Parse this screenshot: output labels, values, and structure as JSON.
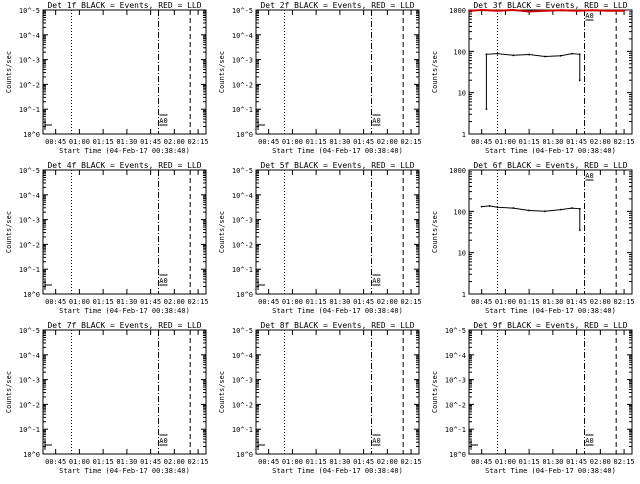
{
  "window": {
    "title": "Det 1f-9f BLACK = Events, RED = LLD"
  },
  "colors": {
    "events": "#000000",
    "lld": "#cc0000",
    "axis": "#000000",
    "background": "#ffffff"
  },
  "chart_data": [
    {
      "type": "line",
      "title": "Det 1f BLACK = Events, RED = LLD",
      "xlabel": "Start Time (04-Feb-17 00:38:40)",
      "ylabel": "Counts/sec",
      "x_ticks": [
        "00:45",
        "01:00",
        "01:15",
        "01:30",
        "01:45",
        "02:00",
        "02:15"
      ],
      "y_ticks": [
        "10^0",
        "10^-1",
        "10^-2",
        "10^-3",
        "10^-4",
        "10^-5"
      ],
      "yscale": "log",
      "has_data": false,
      "annotation": "A0",
      "markers": {
        "dotted": [
          "00:55"
        ],
        "dash_dot": [
          "01:50"
        ],
        "dashed": [
          "02:10"
        ]
      }
    },
    {
      "type": "line",
      "title": "Det 2f BLACK = Events, RED = LLD",
      "xlabel": "Start Time (04-Feb-17 00:38:40)",
      "ylabel": "Counts/sec",
      "x_ticks": [
        "00:45",
        "01:00",
        "01:15",
        "01:30",
        "01:45",
        "02:00",
        "02:15"
      ],
      "y_ticks": [
        "10^0",
        "10^-1",
        "10^-2",
        "10^-3",
        "10^-4",
        "10^-5"
      ],
      "yscale": "log",
      "has_data": false,
      "annotation": "A0",
      "markers": {
        "dotted": [
          "00:55"
        ],
        "dash_dot": [
          "01:50"
        ],
        "dashed": [
          "02:10"
        ]
      }
    },
    {
      "type": "line",
      "title": "Det 3f BLACK = Events, RED = LLD",
      "xlabel": "Start Time (04-Feb-17 00:38:40)",
      "ylabel": "Counts/sec",
      "x_ticks": [
        "00:45",
        "01:00",
        "01:15",
        "01:30",
        "01:45",
        "02:00",
        "02:15"
      ],
      "y_ticks": [
        "1",
        "10",
        "100",
        "1000"
      ],
      "yscale": "log",
      "has_data": true,
      "annotation": "A0",
      "markers": {
        "dotted": [
          "00:55"
        ],
        "dash_dot": [
          "01:50"
        ],
        "dashed": [
          "02:10"
        ]
      },
      "series": [
        {
          "name": "Events",
          "color": "#000000",
          "x": [
            "00:48",
            "00:48",
            "00:55",
            "01:05",
            "01:15",
            "01:25",
            "01:35",
            "01:42",
            "01:47",
            "01:47"
          ],
          "y": [
            4,
            85,
            88,
            80,
            84,
            75,
            78,
            88,
            85,
            20
          ]
        },
        {
          "name": "LLD",
          "color": "#cc0000",
          "x": [
            "00:37",
            "00:45",
            "00:55",
            "01:05",
            "01:15",
            "01:25",
            "01:35",
            "01:45",
            "01:55",
            "02:05",
            "02:15"
          ],
          "y": [
            950,
            1000,
            960,
            1000,
            920,
            960,
            990,
            960,
            990,
            960,
            960
          ]
        }
      ]
    },
    {
      "type": "line",
      "title": "Det 4f BLACK = Events, RED = LLD",
      "xlabel": "Start Time (04-Feb-17 00:38:40)",
      "ylabel": "Counts/sec",
      "x_ticks": [
        "00:45",
        "01:00",
        "01:15",
        "01:30",
        "01:45",
        "02:00",
        "02:15"
      ],
      "y_ticks": [
        "10^0",
        "10^-1",
        "10^-2",
        "10^-3",
        "10^-4",
        "10^-5"
      ],
      "yscale": "log",
      "has_data": false,
      "annotation": "A0",
      "markers": {
        "dotted": [
          "00:55"
        ],
        "dash_dot": [
          "01:50"
        ],
        "dashed": [
          "02:10"
        ]
      }
    },
    {
      "type": "line",
      "title": "Det 5f BLACK = Events, RED = LLD",
      "xlabel": "Start Time (04-Feb-17 00:38:40)",
      "ylabel": "Counts/sec",
      "x_ticks": [
        "00:45",
        "01:00",
        "01:15",
        "01:30",
        "01:45",
        "02:00",
        "02:15"
      ],
      "y_ticks": [
        "10^0",
        "10^-1",
        "10^-2",
        "10^-3",
        "10^-4",
        "10^-5"
      ],
      "yscale": "log",
      "has_data": false,
      "annotation": "A0",
      "markers": {
        "dotted": [
          "00:55"
        ],
        "dash_dot": [
          "01:50"
        ],
        "dashed": [
          "02:10"
        ]
      }
    },
    {
      "type": "line",
      "title": "Det 6f BLACK = Events, RED = LLD",
      "xlabel": "Start Time (04-Feb-17 00:38:40)",
      "ylabel": "Counts/sec",
      "x_ticks": [
        "00:45",
        "01:00",
        "01:15",
        "01:30",
        "01:45",
        "02:00",
        "02:15"
      ],
      "y_ticks": [
        "1",
        "10",
        "100",
        "1000"
      ],
      "yscale": "log",
      "has_data": true,
      "annotation": "A0",
      "markers": {
        "dotted": [
          "00:55"
        ],
        "dash_dot": [
          "01:50"
        ],
        "dashed": [
          "02:10"
        ]
      },
      "series": [
        {
          "name": "Events",
          "color": "#000000",
          "x": [
            "00:45",
            "00:50",
            "00:55",
            "01:05",
            "01:15",
            "01:25",
            "01:35",
            "01:42",
            "01:47",
            "01:47"
          ],
          "y": [
            130,
            135,
            125,
            120,
            105,
            100,
            110,
            120,
            115,
            35
          ]
        }
      ]
    },
    {
      "type": "line",
      "title": "Det 7f BLACK = Events, RED = LLD",
      "xlabel": "Start Time (04-Feb-17 00:38:40)",
      "ylabel": "Counts/sec",
      "x_ticks": [
        "00:45",
        "01:00",
        "01:15",
        "01:30",
        "01:45",
        "02:00",
        "02:15"
      ],
      "y_ticks": [
        "10^0",
        "10^-1",
        "10^-2",
        "10^-3",
        "10^-4",
        "10^-5"
      ],
      "yscale": "log",
      "has_data": false,
      "annotation": "A0",
      "markers": {
        "dotted": [
          "00:55"
        ],
        "dash_dot": [
          "01:50"
        ],
        "dashed": [
          "02:10"
        ]
      }
    },
    {
      "type": "line",
      "title": "Det 8f BLACK = Events, RED = LLD",
      "xlabel": "Start Time (04-Feb-17 00:38:40)",
      "ylabel": "Counts/sec",
      "x_ticks": [
        "00:45",
        "01:00",
        "01:15",
        "01:30",
        "01:45",
        "02:00",
        "02:15"
      ],
      "y_ticks": [
        "10^0",
        "10^-1",
        "10^-2",
        "10^-3",
        "10^-4",
        "10^-5"
      ],
      "yscale": "log",
      "has_data": false,
      "annotation": "A0",
      "markers": {
        "dotted": [
          "00:55"
        ],
        "dash_dot": [
          "01:50"
        ],
        "dashed": [
          "02:10"
        ]
      }
    },
    {
      "type": "line",
      "title": "Det 9f BLACK = Events, RED = LLD",
      "xlabel": "Start Time (04-Feb-17 00:38:40)",
      "ylabel": "Counts/sec",
      "x_ticks": [
        "00:45",
        "01:00",
        "01:15",
        "01:30",
        "01:45",
        "02:00",
        "02:15"
      ],
      "y_ticks": [
        "10^0",
        "10^-1",
        "10^-2",
        "10^-3",
        "10^-4",
        "10^-5"
      ],
      "yscale": "log",
      "has_data": false,
      "annotation": "A0",
      "markers": {
        "dotted": [
          "00:55"
        ],
        "dash_dot": [
          "01:50"
        ],
        "dashed": [
          "02:10"
        ]
      }
    }
  ]
}
